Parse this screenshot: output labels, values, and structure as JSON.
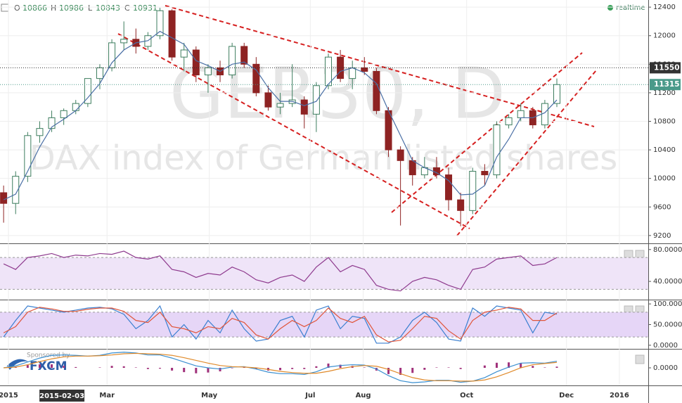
{
  "header": {
    "open_label": "O",
    "open": 10866,
    "high_label": "H",
    "high": 10986,
    "low_label": "L",
    "low": 10843,
    "close_label": "C",
    "close": 10931,
    "status": "realtime",
    "sponsor": "Sponsored by",
    "sponsor_brand": "FXCM"
  },
  "chart_data": [
    {
      "type": "candlestick",
      "title": "GER30, D",
      "subtitle": "DAX index of German listed shares",
      "x": [
        0,
        1,
        2,
        3,
        4,
        5,
        6,
        7,
        8,
        9,
        10,
        11,
        12,
        13,
        14,
        15,
        16,
        17,
        18,
        19,
        20,
        21,
        22,
        23,
        24,
        25,
        26,
        27,
        28,
        29,
        30,
        31,
        32,
        33,
        34,
        35,
        36,
        37,
        38,
        39,
        40,
        41,
        42,
        43,
        44,
        45,
        46
      ],
      "open": [
        9800,
        9650,
        10030,
        10600,
        10700,
        10850,
        10950,
        11050,
        11400,
        11550,
        11900,
        11950,
        11850,
        12000,
        12350,
        11700,
        11800,
        11450,
        11550,
        11450,
        11850,
        11600,
        11200,
        11000,
        11050,
        11100,
        10900,
        11300,
        11700,
        11400,
        11550,
        11500,
        10950,
        10400,
        10250,
        10050,
        10150,
        10050,
        9700,
        9550,
        10100,
        10050,
        10750,
        10850,
        10950,
        10750,
        11050
      ],
      "high": [
        9900,
        10100,
        10650,
        10800,
        10950,
        10980,
        11100,
        11400,
        11600,
        11950,
        12200,
        12100,
        12050,
        12390,
        12370,
        11900,
        11850,
        11600,
        11650,
        11900,
        11900,
        11700,
        11300,
        11200,
        11600,
        11150,
        11350,
        11750,
        11800,
        11650,
        11700,
        11550,
        11000,
        10450,
        10300,
        10300,
        10300,
        10150,
        9800,
        10150,
        10200,
        10800,
        10900,
        11050,
        11000,
        11100,
        11400
      ],
      "low": [
        9380,
        9500,
        9950,
        10500,
        10650,
        10750,
        10900,
        11000,
        11250,
        11500,
        11800,
        11750,
        11800,
        11950,
        11650,
        11500,
        11350,
        11200,
        11350,
        11400,
        11550,
        11150,
        10950,
        10900,
        11000,
        10700,
        10650,
        11250,
        11350,
        11250,
        11450,
        10900,
        10300,
        9340,
        9900,
        10000,
        10000,
        9550,
        9330,
        9500,
        9900,
        10000,
        10700,
        10800,
        10700,
        10700,
        11000
      ],
      "close": [
        9650,
        10030,
        10600,
        10700,
        10850,
        10950,
        11050,
        11400,
        11550,
        11900,
        11950,
        11850,
        12000,
        12350,
        11700,
        11800,
        11450,
        11550,
        11450,
        11850,
        11600,
        11200,
        11000,
        11050,
        11100,
        10900,
        11300,
        11700,
        11400,
        11550,
        11500,
        10950,
        10400,
        10250,
        10050,
        10150,
        10050,
        9700,
        9550,
        10100,
        10050,
        10750,
        10850,
        10950,
        10750,
        11050,
        11315
      ],
      "up_color": "#3d7d5e",
      "down_color": "#8e2323",
      "ma": {
        "color": "#4a6fa5",
        "values": [
          9700,
          9780,
          10100,
          10440,
          10720,
          10830,
          10950,
          11130,
          11330,
          11620,
          11800,
          11900,
          11930,
          12060,
          11970,
          11880,
          11650,
          11580,
          11500,
          11600,
          11630,
          11520,
          11270,
          11080,
          11080,
          11020,
          11080,
          11320,
          11500,
          11550,
          11480,
          11330,
          10950,
          10600,
          10250,
          10150,
          10080,
          9970,
          9770,
          9780,
          9900,
          10300,
          10550,
          10850,
          10850,
          10920,
          11100
        ]
      },
      "xlim": [
        -0.3,
        53.6
      ],
      "xticks": [
        {
          "value": 0.4,
          "label": "2015"
        },
        {
          "value": 8.6,
          "label": "Mar"
        },
        {
          "value": 17.1,
          "label": "May"
        },
        {
          "value": 25.5,
          "label": "Jul"
        },
        {
          "value": 29.9,
          "label": "Aug"
        },
        {
          "value": 38.5,
          "label": "Oct"
        },
        {
          "value": 46.8,
          "label": "Dec"
        },
        {
          "value": 51.2,
          "label": "2016"
        }
      ],
      "crosshair": {
        "value": 4.85,
        "label": "2015-02-03"
      },
      "ylim": [
        9100,
        12500
      ],
      "yticks": [
        12400,
        12000,
        11600,
        11200,
        10800,
        10400,
        10000,
        9600,
        9200
      ],
      "hline": 11550,
      "last_price": 11315,
      "last_color": "#4a9a8a",
      "hline_color": "#333333",
      "grid": true
    },
    {
      "type": "line",
      "series": [
        {
          "color": "#8e3a8e",
          "values": [
            62,
            55,
            70,
            72,
            75,
            70,
            73,
            72,
            75,
            74,
            78,
            70,
            68,
            72,
            55,
            52,
            45,
            50,
            48,
            58,
            52,
            42,
            38,
            45,
            48,
            40,
            58,
            70,
            52,
            60,
            55,
            35,
            30,
            28,
            40,
            45,
            42,
            35,
            30,
            55,
            58,
            68,
            70,
            72,
            60,
            62,
            70
          ]
        }
      ],
      "ylim": [
        18,
        86
      ],
      "yticks": [
        {
          "value": 80,
          "label": "80.0000"
        },
        {
          "value": 40,
          "label": "40.0000"
        }
      ],
      "band": [
        30,
        70
      ],
      "band_color": "#efe4f8"
    },
    {
      "type": "line",
      "series": [
        {
          "color": "#3a7fd0",
          "values": [
            20,
            60,
            95,
            90,
            85,
            80,
            85,
            90,
            92,
            88,
            75,
            40,
            60,
            95,
            20,
            50,
            15,
            60,
            30,
            85,
            40,
            10,
            15,
            60,
            70,
            20,
            85,
            95,
            40,
            70,
            65,
            5,
            5,
            20,
            60,
            80,
            55,
            15,
            10,
            90,
            70,
            95,
            90,
            85,
            30,
            80,
            75
          ]
        },
        {
          "color": "#e0553a",
          "values": [
            30,
            45,
            80,
            92,
            88,
            82,
            82,
            87,
            90,
            90,
            82,
            60,
            55,
            80,
            45,
            40,
            30,
            45,
            40,
            65,
            55,
            25,
            15,
            40,
            60,
            45,
            60,
            90,
            65,
            55,
            70,
            25,
            8,
            12,
            40,
            70,
            65,
            35,
            15,
            60,
            80,
            85,
            92,
            88,
            60,
            60,
            78
          ]
        }
      ],
      "ylim": [
        -7,
        107
      ],
      "yticks": [
        {
          "value": 100,
          "label": "100.0000"
        },
        {
          "value": 50,
          "label": "50.0000"
        },
        {
          "value": 0,
          "label": "0.0000"
        }
      ],
      "band": [
        20,
        80
      ],
      "band_color": "#e6d6f7"
    },
    {
      "type": "line",
      "series": [
        {
          "color": "#3a8fd0",
          "values": [
            0,
            50,
            150,
            250,
            320,
            330,
            320,
            300,
            320,
            380,
            400,
            380,
            330,
            330,
            250,
            150,
            50,
            0,
            -30,
            20,
            30,
            -30,
            -110,
            -150,
            -150,
            -170,
            -100,
            20,
            60,
            80,
            70,
            -30,
            -200,
            -330,
            -380,
            -360,
            -320,
            -320,
            -370,
            -340,
            -250,
            -100,
            20,
            120,
            130,
            120,
            170
          ]
        },
        {
          "color": "#e08a2a",
          "values": [
            0,
            20,
            80,
            160,
            230,
            280,
            300,
            300,
            310,
            330,
            360,
            370,
            360,
            350,
            320,
            260,
            190,
            120,
            60,
            30,
            20,
            0,
            -40,
            -90,
            -120,
            -140,
            -140,
            -90,
            -20,
            30,
            60,
            40,
            -40,
            -150,
            -250,
            -310,
            -330,
            -330,
            -340,
            -340,
            -310,
            -230,
            -120,
            0,
            80,
            110,
            140
          ]
        }
      ],
      "histogram": {
        "color": "#a0307a",
        "values": [
          0,
          30,
          70,
          90,
          90,
          50,
          20,
          0,
          10,
          50,
          40,
          10,
          -30,
          -20,
          -70,
          -110,
          -140,
          -120,
          -90,
          -10,
          10,
          -30,
          -70,
          -60,
          -30,
          -30,
          40,
          110,
          80,
          50,
          10,
          -70,
          -160,
          -180,
          -130,
          -50,
          10,
          10,
          -30,
          0,
          60,
          130,
          140,
          120,
          50,
          10,
          30
        ]
      },
      "ylim": [
        -450,
        450
      ],
      "yticks": [
        {
          "value": 0,
          "label": "0.0000"
        }
      ]
    }
  ]
}
